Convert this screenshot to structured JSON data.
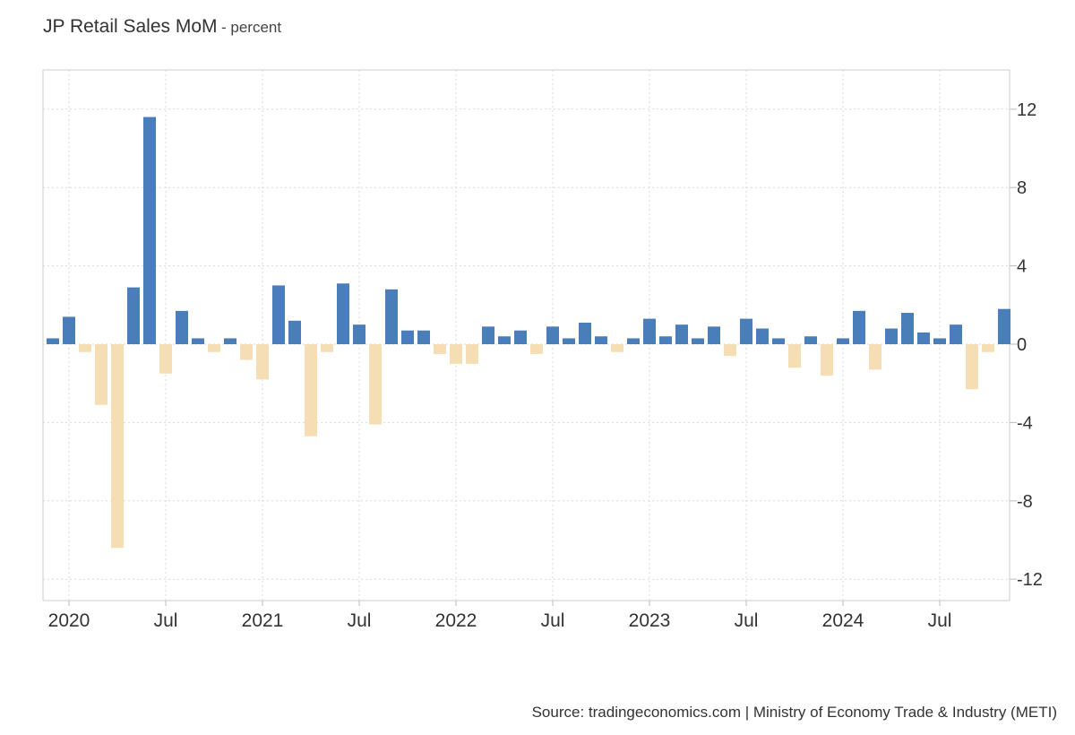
{
  "chart_data": {
    "type": "bar",
    "title": "JP Retail Sales MoM",
    "subtitle": "- percent",
    "x_tick_labels": [
      "2020",
      "Jul",
      "2021",
      "Jul",
      "2022",
      "Jul",
      "2023",
      "Jul",
      "2024",
      "Jul"
    ],
    "y_ticks": [
      12,
      8,
      4,
      0,
      -4,
      -8,
      -12
    ],
    "ylim": [
      -13,
      14
    ],
    "grid": true,
    "colors": {
      "positive": "#4a7ebb",
      "negative": "#f5deb3"
    },
    "categories": [
      "2019-12",
      "2020-01",
      "2020-02",
      "2020-03",
      "2020-04",
      "2020-05",
      "2020-06",
      "2020-07",
      "2020-08",
      "2020-09",
      "2020-10",
      "2020-11",
      "2020-12",
      "2021-01",
      "2021-02",
      "2021-03",
      "2021-04",
      "2021-05",
      "2021-06",
      "2021-07",
      "2021-08",
      "2021-09",
      "2021-10",
      "2021-11",
      "2021-12",
      "2022-01",
      "2022-02",
      "2022-03",
      "2022-04",
      "2022-05",
      "2022-06",
      "2022-07",
      "2022-08",
      "2022-09",
      "2022-10",
      "2022-11",
      "2022-12",
      "2023-01",
      "2023-02",
      "2023-03",
      "2023-04",
      "2023-05",
      "2023-06",
      "2023-07",
      "2023-08",
      "2023-09",
      "2023-10",
      "2023-11",
      "2023-12",
      "2024-01",
      "2024-02",
      "2024-03",
      "2024-04",
      "2024-05",
      "2024-06",
      "2024-07",
      "2024-08",
      "2024-09",
      "2024-10",
      "2024-11",
      "2024-12"
    ],
    "values": [
      0.3,
      1.4,
      -0.4,
      -3.1,
      -10.4,
      2.9,
      11.6,
      -1.5,
      1.7,
      0.3,
      -0.4,
      0.3,
      -0.8,
      -1.8,
      3.0,
      1.2,
      -4.7,
      -0.4,
      3.1,
      1.0,
      -4.1,
      2.8,
      0.7,
      0.7,
      -0.5,
      -1.0,
      -1.0,
      0.9,
      0.4,
      0.7,
      -0.5,
      0.9,
      0.3,
      1.1,
      0.4,
      -0.4,
      0.3,
      1.3,
      0.4,
      1.0,
      0.3,
      0.9,
      -0.6,
      1.3,
      0.8,
      0.3,
      -1.2,
      0.4,
      -1.6,
      0.3,
      1.7,
      -1.3,
      0.8,
      1.6,
      0.6,
      0.3,
      1.0,
      -2.3,
      -0.4,
      1.8,
      0.0
    ]
  },
  "source_text": "Source: tradingeconomics.com | Ministry of Economy Trade & Industry (METI)"
}
